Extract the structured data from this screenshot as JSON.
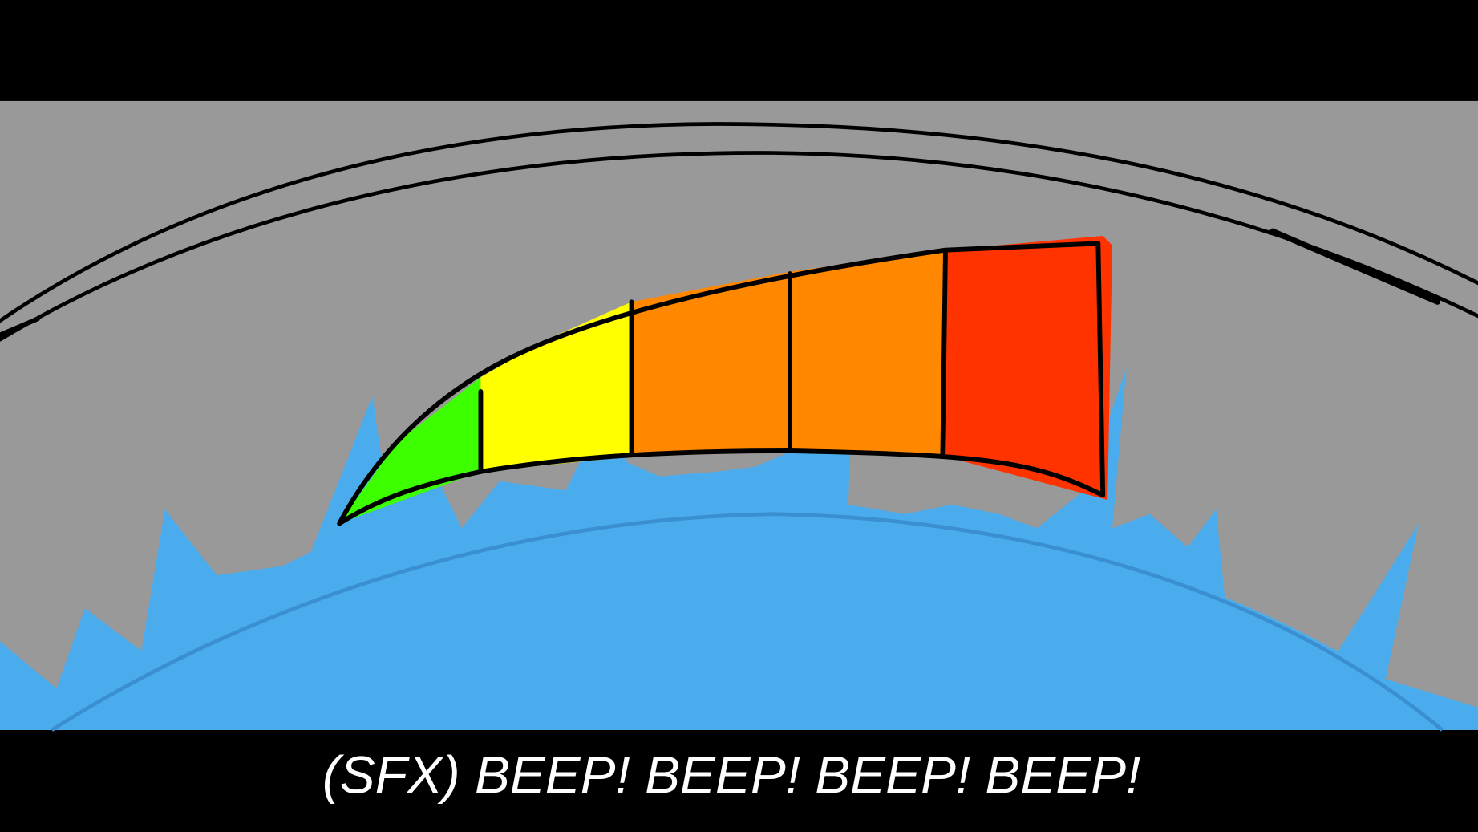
{
  "caption": "(SFX) BEEP! BEEP! BEEP! BEEP!"
}
